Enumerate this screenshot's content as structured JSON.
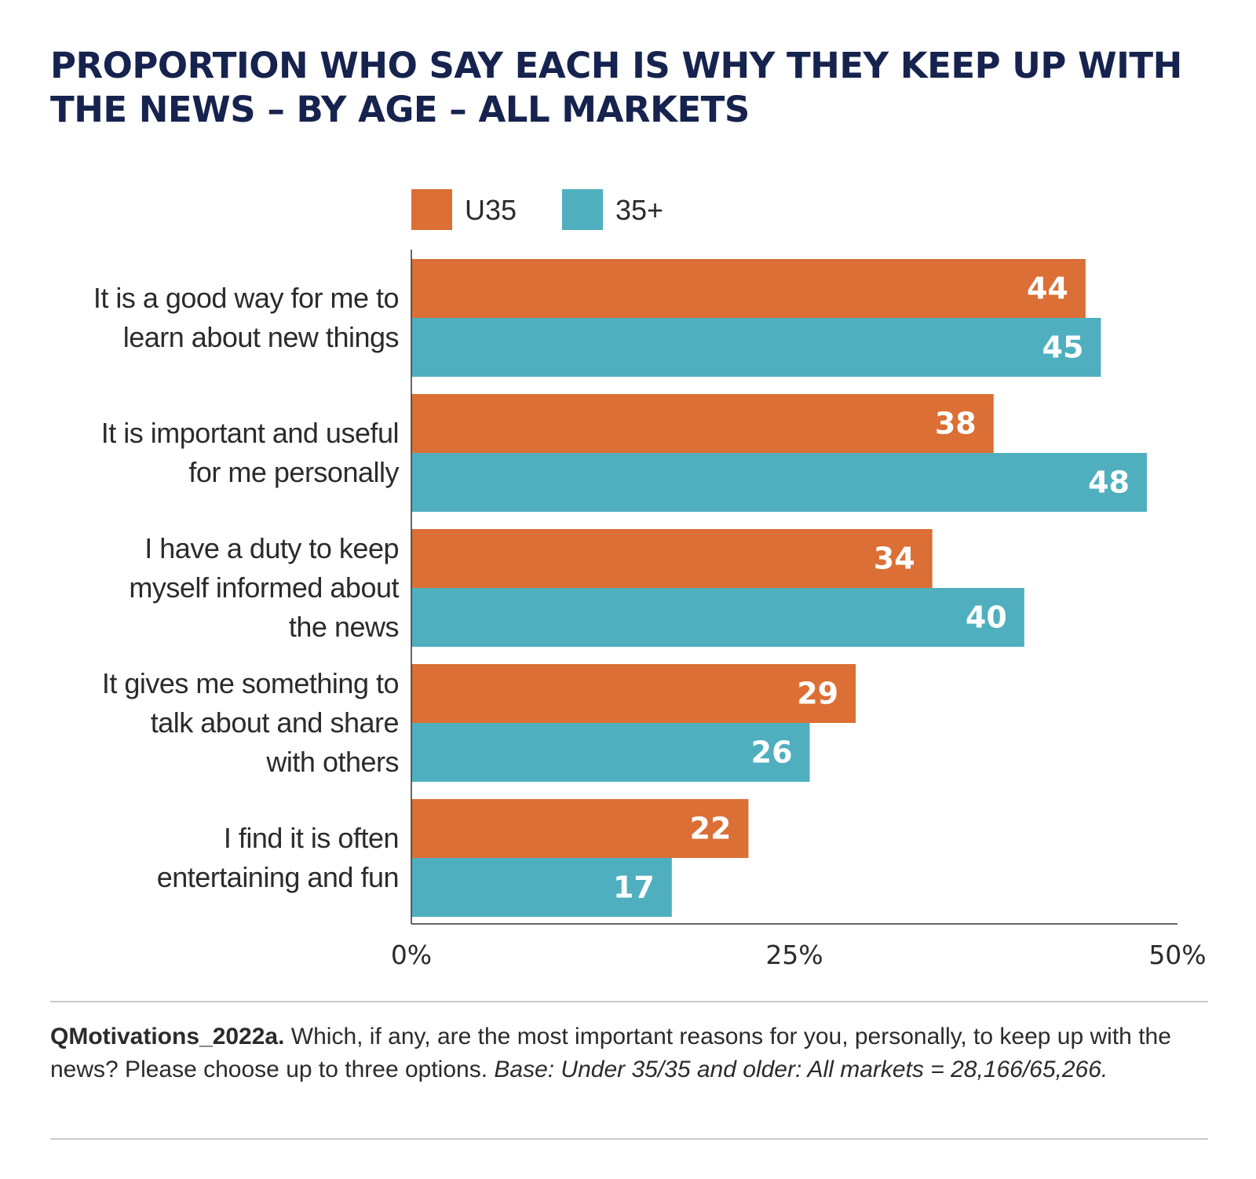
{
  "title": "PROPORTION WHO SAY EACH IS WHY THEY KEEP UP WITH THE NEWS – BY AGE – ALL MARKETS",
  "legend": [
    {
      "name": "U35",
      "color": "#db6f36"
    },
    {
      "name": "35+",
      "color": "#4fafbf"
    }
  ],
  "footnote": {
    "question_code": "QMotivations_2022a.",
    "question_text": " Which, if any, are the most important reasons for you, personally, to keep up with the news? Please choose up to three options. ",
    "base": "Base: Under 35/35 and older: All markets = 28,166/65,266."
  },
  "chart_data": {
    "type": "bar",
    "orientation": "horizontal",
    "title": "PROPORTION WHO SAY EACH IS WHY THEY KEEP UP WITH THE NEWS – BY AGE – ALL MARKETS",
    "categories": [
      "It is a good way for me to learn about new things",
      "It is important and useful for me personally",
      "I have a duty to keep myself informed about the news",
      "It gives me something to talk about and share with others",
      "I find it is often entertaining and fun"
    ],
    "category_lines": [
      [
        "It is a good way for me to",
        "learn about new things"
      ],
      [
        "It is important and useful",
        "for me personally"
      ],
      [
        "I have a duty to keep",
        "myself informed about",
        "the news"
      ],
      [
        "It gives me something to",
        "talk about and share",
        "with others"
      ],
      [
        "I find it is often",
        "entertaining and fun"
      ]
    ],
    "series": [
      {
        "name": "U35",
        "color": "#db6f36",
        "values": [
          44,
          38,
          34,
          29,
          22
        ]
      },
      {
        "name": "35+",
        "color": "#4fafbf",
        "values": [
          45,
          48,
          40,
          26,
          17
        ]
      }
    ],
    "xlim": [
      0,
      50
    ],
    "xticks": [
      0,
      25,
      50
    ],
    "xtick_labels": [
      "0%",
      "25%",
      "50%"
    ],
    "xlabel": "",
    "ylabel": "",
    "grid": false,
    "legend_position": "top"
  }
}
